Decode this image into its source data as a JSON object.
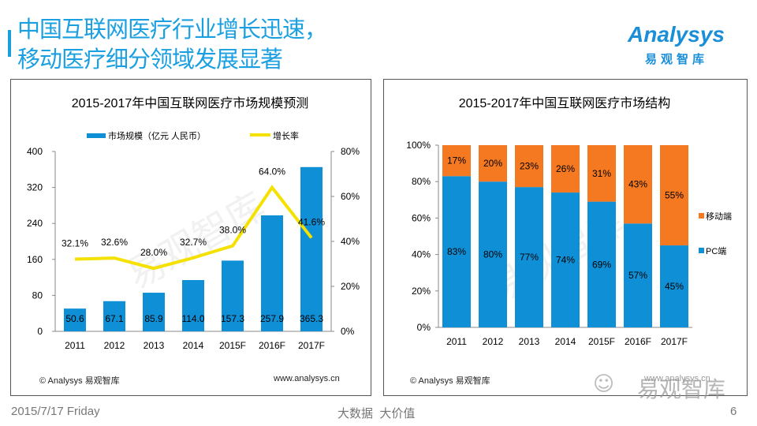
{
  "header": {
    "title_line1": "中国互联网医疗行业增长迅速，",
    "title_line2": "移动医疗细分领域发展显著",
    "logo_en": "Analysys",
    "logo_cn": "易观智库"
  },
  "footer": {
    "date": "2015/7/17 Friday",
    "slogan": "大数据  大价值",
    "page": "6",
    "watermark": "易观智库"
  },
  "colors": {
    "blue": "#0e8fd6",
    "yellow": "#f5e100",
    "orange": "#f47920",
    "accent": "#1a9fe0"
  },
  "chart_data": [
    {
      "type": "bar+line",
      "title": "2015-2017年中国互联网医疗市场规模预测",
      "categories": [
        "2011",
        "2012",
        "2013",
        "2014",
        "2015F",
        "2016F",
        "2017F"
      ],
      "series": [
        {
          "name": "市场规模（亿元 人民币）",
          "type": "bar",
          "values": [
            50.6,
            67.1,
            85.9,
            114.0,
            157.3,
            257.9,
            365.3
          ],
          "labels": [
            "50.6",
            "67.1",
            "85.9",
            "114.0",
            "157.3",
            "257.9",
            "365.3"
          ]
        },
        {
          "name": "增长率",
          "type": "line",
          "axis": "right",
          "values": [
            32.1,
            32.6,
            28.0,
            32.7,
            38.0,
            64.0,
            41.6
          ],
          "labels": [
            "32.1%",
            "32.6%",
            "28.0%",
            "32.7%",
            "38.0%",
            "64.0%",
            "41.6%"
          ]
        }
      ],
      "ylim": [
        0,
        400
      ],
      "yticks": [
        "0",
        "80",
        "160",
        "240",
        "320",
        "400"
      ],
      "y2lim": [
        0,
        80
      ],
      "y2ticks": [
        "0%",
        "20%",
        "40%",
        "60%",
        "80%"
      ],
      "legend": "top",
      "source": "© Analysys 易观智库",
      "url": "www.analysys.cn",
      "watermark": "易观智库"
    },
    {
      "type": "stacked-bar",
      "title": "2015-2017年中国互联网医疗市场结构",
      "categories": [
        "2011",
        "2012",
        "2013",
        "2014",
        "2015F",
        "2016F",
        "2017F"
      ],
      "series": [
        {
          "name": "PC端",
          "values": [
            83,
            80,
            77,
            74,
            69,
            57,
            45
          ],
          "labels": [
            "83%",
            "80%",
            "77%",
            "74%",
            "69%",
            "57%",
            "45%"
          ]
        },
        {
          "name": "移动端",
          "values": [
            17,
            20,
            23,
            26,
            31,
            43,
            55
          ],
          "labels": [
            "17%",
            "20%",
            "23%",
            "26%",
            "31%",
            "43%",
            "55%"
          ]
        }
      ],
      "ylim": [
        0,
        100
      ],
      "yticks": [
        "0%",
        "20%",
        "40%",
        "60%",
        "80%",
        "100%"
      ],
      "legend": "right",
      "source": "© Analysys 易观智库",
      "url": "www.analysys.cn",
      "watermark": "易观智库"
    }
  ]
}
